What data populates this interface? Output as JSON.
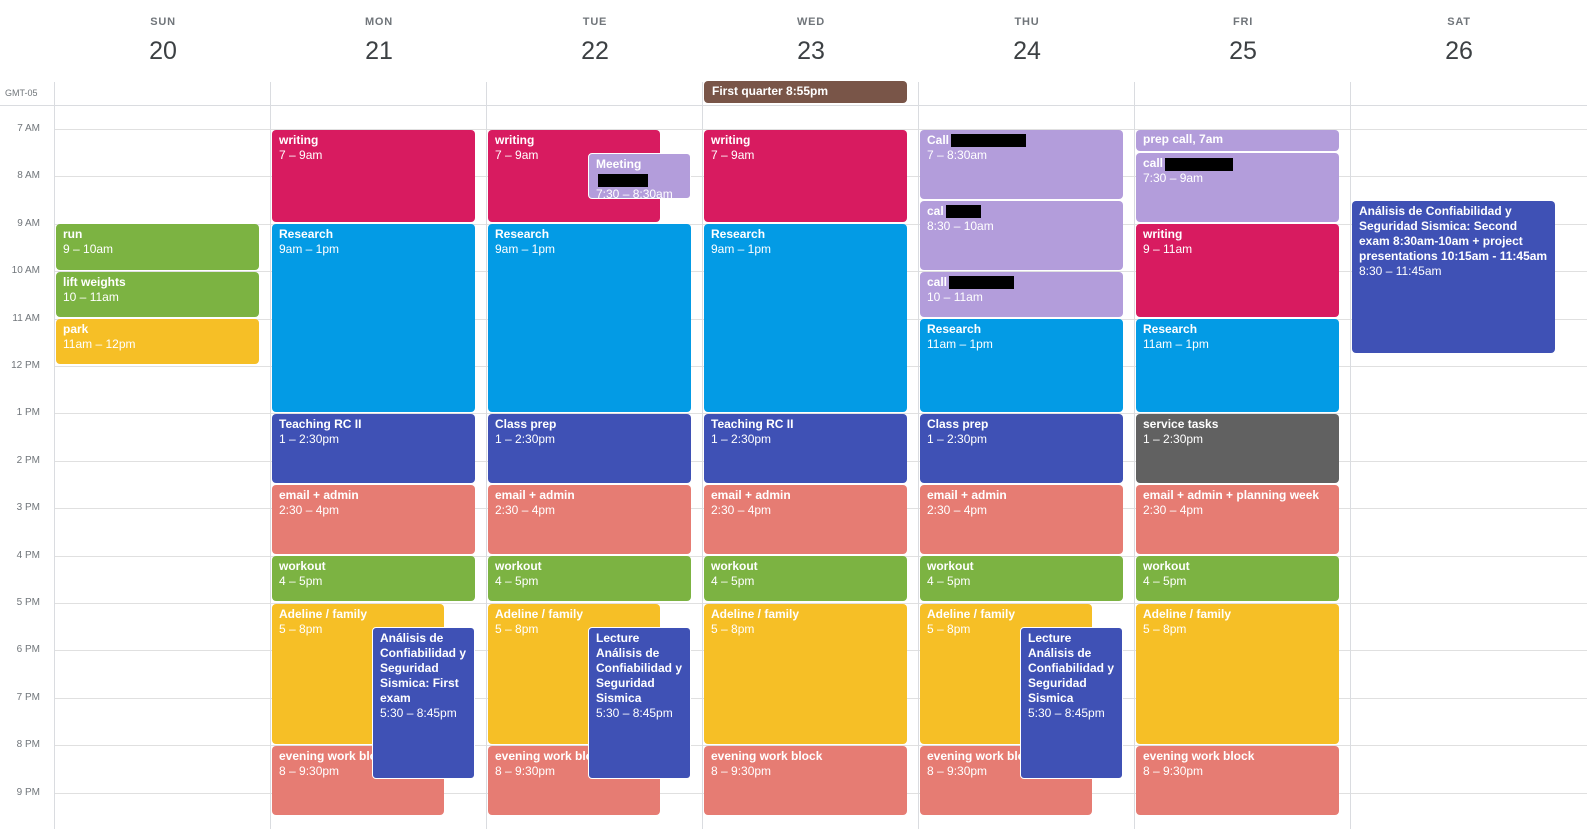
{
  "colors": {
    "tomato": "#d81b60",
    "peacock": "#039be5",
    "blueberry": "#3f51b5",
    "flamingo": "#e67c73",
    "basil": "#7cb342",
    "banana": "#f6bf26",
    "lavender": "#b39ddb",
    "graphite": "#616161",
    "cocoa": "#795548"
  },
  "timezone": "GMT-05",
  "days": [
    {
      "name": "SUN",
      "num": "20"
    },
    {
      "name": "MON",
      "num": "21"
    },
    {
      "name": "TUE",
      "num": "22"
    },
    {
      "name": "WED",
      "num": "23"
    },
    {
      "name": "THU",
      "num": "24"
    },
    {
      "name": "FRI",
      "num": "25"
    },
    {
      "name": "SAT",
      "num": "26"
    }
  ],
  "hours": [
    "7 AM",
    "8 AM",
    "9 AM",
    "10 AM",
    "11 AM",
    "12 PM",
    "1 PM",
    "2 PM",
    "3 PM",
    "4 PM",
    "5 PM",
    "6 PM",
    "7 PM",
    "8 PM",
    "9 PM"
  ],
  "allday": [
    {
      "day": 3,
      "title": "First quarter 8:55pm",
      "color": "cocoa"
    }
  ],
  "events": [
    {
      "day": 0,
      "start": 9,
      "end": 10,
      "title": "run",
      "time": "9 – 10am",
      "color": "basil"
    },
    {
      "day": 0,
      "start": 10,
      "end": 11,
      "title": "lift weights",
      "time": "10 – 11am",
      "color": "basil"
    },
    {
      "day": 0,
      "start": 11,
      "end": 12,
      "title": "park",
      "time": "11am – 12pm",
      "color": "banana"
    },
    {
      "day": 1,
      "start": 7,
      "end": 9,
      "title": "writing",
      "time": "7 – 9am",
      "color": "tomato"
    },
    {
      "day": 1,
      "start": 9,
      "end": 13,
      "title": "Research",
      "time": "9am – 1pm",
      "color": "peacock"
    },
    {
      "day": 1,
      "start": 13,
      "end": 14.5,
      "title": "Teaching RC II",
      "time": "1 – 2:30pm",
      "color": "blueberry"
    },
    {
      "day": 1,
      "start": 14.5,
      "end": 16,
      "title": "email + admin",
      "time": "2:30 – 4pm",
      "color": "flamingo"
    },
    {
      "day": 1,
      "start": 16,
      "end": 17,
      "title": "workout",
      "time": "4 – 5pm",
      "color": "basil"
    },
    {
      "day": 1,
      "start": 17,
      "end": 20,
      "title": "Adeline / family",
      "time": "5 – 8pm",
      "color": "banana",
      "narrow": true
    },
    {
      "day": 1,
      "start": 20,
      "end": 21.5,
      "title": "evening work block",
      "time": "8 – 9:30pm",
      "color": "flamingo",
      "narrow": true
    },
    {
      "day": 1,
      "start": 17.5,
      "end": 20.75,
      "title": "Análisis de Confiabilidad y Seguridad Sismica: First exam",
      "time": "5:30 – 8:45pm",
      "color": "blueberry",
      "overlay": true
    },
    {
      "day": 2,
      "start": 7,
      "end": 9,
      "title": "writing",
      "time": "7 – 9am",
      "color": "tomato",
      "narrow": true
    },
    {
      "day": 2,
      "start": 7.5,
      "end": 8.5,
      "title": "Meeting",
      "time": "7:30 – 8:30am",
      "color": "lavender",
      "overlay": true,
      "redact": 50
    },
    {
      "day": 2,
      "start": 9,
      "end": 13,
      "title": "Research",
      "time": "9am – 1pm",
      "color": "peacock"
    },
    {
      "day": 2,
      "start": 13,
      "end": 14.5,
      "title": "Class prep",
      "time": "1 – 2:30pm",
      "color": "blueberry"
    },
    {
      "day": 2,
      "start": 14.5,
      "end": 16,
      "title": "email + admin",
      "time": "2:30 – 4pm",
      "color": "flamingo"
    },
    {
      "day": 2,
      "start": 16,
      "end": 17,
      "title": "workout",
      "time": "4 – 5pm",
      "color": "basil"
    },
    {
      "day": 2,
      "start": 17,
      "end": 20,
      "title": "Adeline / family",
      "time": "5 – 8pm",
      "color": "banana",
      "narrow": true
    },
    {
      "day": 2,
      "start": 20,
      "end": 21.5,
      "title": "evening work block",
      "time": "8 – 9:30pm",
      "color": "flamingo",
      "narrow": true
    },
    {
      "day": 2,
      "start": 17.5,
      "end": 20.75,
      "title": "Lecture Análisis de Confiabilidad y Seguridad Sismica",
      "time": "5:30 – 8:45pm",
      "color": "blueberry",
      "overlay": true
    },
    {
      "day": 3,
      "start": 7,
      "end": 9,
      "title": "writing",
      "time": "7 – 9am",
      "color": "tomato"
    },
    {
      "day": 3,
      "start": 9,
      "end": 13,
      "title": "Research",
      "time": "9am – 1pm",
      "color": "peacock"
    },
    {
      "day": 3,
      "start": 13,
      "end": 14.5,
      "title": "Teaching RC II",
      "time": "1 – 2:30pm",
      "color": "blueberry"
    },
    {
      "day": 3,
      "start": 14.5,
      "end": 16,
      "title": "email + admin",
      "time": "2:30 – 4pm",
      "color": "flamingo"
    },
    {
      "day": 3,
      "start": 16,
      "end": 17,
      "title": "workout",
      "time": "4 – 5pm",
      "color": "basil"
    },
    {
      "day": 3,
      "start": 17,
      "end": 20,
      "title": "Adeline / family",
      "time": "5 – 8pm",
      "color": "banana"
    },
    {
      "day": 3,
      "start": 20,
      "end": 21.5,
      "title": "evening work block",
      "time": "8 – 9:30pm",
      "color": "flamingo"
    },
    {
      "day": 4,
      "start": 7,
      "end": 8.5,
      "title": "Call",
      "time": "7 – 8:30am",
      "color": "lavender",
      "redact": 75
    },
    {
      "day": 4,
      "start": 8.5,
      "end": 10,
      "title": "cal",
      "time": "8:30 – 10am",
      "color": "lavender",
      "redact": 35
    },
    {
      "day": 4,
      "start": 10,
      "end": 11,
      "title": "call",
      "time": "10 – 11am",
      "color": "lavender",
      "redact": 65
    },
    {
      "day": 4,
      "start": 11,
      "end": 13,
      "title": "Research",
      "time": "11am – 1pm",
      "color": "peacock"
    },
    {
      "day": 4,
      "start": 13,
      "end": 14.5,
      "title": "Class prep",
      "time": "1 – 2:30pm",
      "color": "blueberry"
    },
    {
      "day": 4,
      "start": 14.5,
      "end": 16,
      "title": "email + admin",
      "time": "2:30 – 4pm",
      "color": "flamingo"
    },
    {
      "day": 4,
      "start": 16,
      "end": 17,
      "title": "workout",
      "time": "4 – 5pm",
      "color": "basil"
    },
    {
      "day": 4,
      "start": 17,
      "end": 20,
      "title": "Adeline / family",
      "time": "5 – 8pm",
      "color": "banana",
      "narrow": true
    },
    {
      "day": 4,
      "start": 20,
      "end": 21.5,
      "title": "evening work block",
      "time": "8 – 9:30pm",
      "color": "flamingo",
      "narrow": true
    },
    {
      "day": 4,
      "start": 17.5,
      "end": 20.75,
      "title": "Lecture Análisis de Confiabilidad y Seguridad Sismica",
      "time": "5:30 – 8:45pm",
      "color": "blueberry",
      "overlay": true
    },
    {
      "day": 5,
      "start": 7,
      "end": 7.5,
      "title": "prep call, 7am",
      "time": "",
      "color": "lavender"
    },
    {
      "day": 5,
      "start": 7.5,
      "end": 9,
      "title": "call",
      "time": "7:30 – 9am",
      "color": "lavender",
      "redact": 68
    },
    {
      "day": 5,
      "start": 9,
      "end": 11,
      "title": "writing",
      "time": "9 – 11am",
      "color": "tomato"
    },
    {
      "day": 5,
      "start": 11,
      "end": 13,
      "title": "Research",
      "time": "11am – 1pm",
      "color": "peacock"
    },
    {
      "day": 5,
      "start": 13,
      "end": 14.5,
      "title": "service tasks",
      "time": "1 – 2:30pm",
      "color": "graphite"
    },
    {
      "day": 5,
      "start": 14.5,
      "end": 16,
      "title": "email + admin + planning week",
      "time": "2:30 – 4pm",
      "color": "flamingo"
    },
    {
      "day": 5,
      "start": 16,
      "end": 17,
      "title": "workout",
      "time": "4 – 5pm",
      "color": "basil"
    },
    {
      "day": 5,
      "start": 17,
      "end": 20,
      "title": "Adeline / family",
      "time": "5 – 8pm",
      "color": "banana"
    },
    {
      "day": 5,
      "start": 20,
      "end": 21.5,
      "title": "evening work block",
      "time": "8 – 9:30pm",
      "color": "flamingo"
    },
    {
      "day": 6,
      "start": 8.5,
      "end": 11.75,
      "title": "Análisis de Confiabilidad y Seguridad Sismica: Second exam 8:30am-10am + project presentations 10:15am - 11:45am",
      "time": "8:30 – 11:45am",
      "color": "blueberry"
    }
  ]
}
